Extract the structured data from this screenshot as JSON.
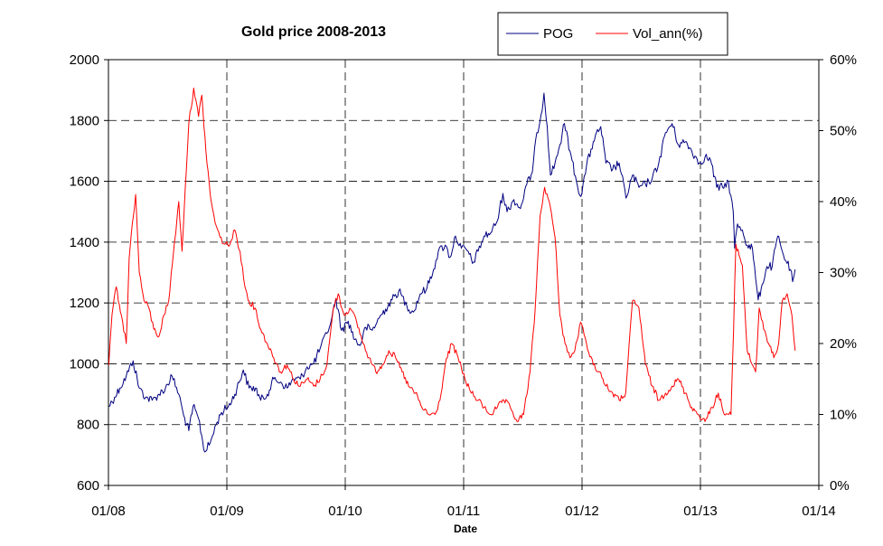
{
  "chart_data": {
    "type": "line",
    "title": "Gold price 2008-2013",
    "xlabel": "Date",
    "ylabel_left": "",
    "ylabel_right": "",
    "x_ticks": [
      "01/08",
      "01/09",
      "01/10",
      "01/11",
      "01/12",
      "01/13",
      "01/14"
    ],
    "x_range": [
      "2008-01-01",
      "2014-01-01"
    ],
    "ylim_left": [
      600,
      2000
    ],
    "y_ticks_left": [
      "600",
      "800",
      "1000",
      "1200",
      "1400",
      "1600",
      "1800",
      "2000"
    ],
    "ylim_right": [
      0,
      60
    ],
    "y_ticks_right": [
      "0%",
      "10%",
      "20%",
      "30%",
      "40%",
      "50%",
      "60%"
    ],
    "grid": true,
    "legend_position": "top-center",
    "series": [
      {
        "name": "POG",
        "axis": "left",
        "color": "#000080",
        "points": [
          [
            "2008-01-02",
            860
          ],
          [
            "2008-01-20",
            890
          ],
          [
            "2008-02-05",
            920
          ],
          [
            "2008-02-25",
            960
          ],
          [
            "2008-03-17",
            1010
          ],
          [
            "2008-04-05",
            920
          ],
          [
            "2008-04-25",
            890
          ],
          [
            "2008-05-15",
            880
          ],
          [
            "2008-06-05",
            900
          ],
          [
            "2008-06-25",
            920
          ],
          [
            "2008-07-15",
            960
          ],
          [
            "2008-08-05",
            900
          ],
          [
            "2008-08-20",
            830
          ],
          [
            "2008-09-05",
            780
          ],
          [
            "2008-09-18",
            860
          ],
          [
            "2008-10-05",
            820
          ],
          [
            "2008-10-24",
            710
          ],
          [
            "2008-11-10",
            740
          ],
          [
            "2008-11-28",
            800
          ],
          [
            "2008-12-15",
            840
          ],
          [
            "2009-01-05",
            860
          ],
          [
            "2009-01-25",
            900
          ],
          [
            "2009-02-20",
            980
          ],
          [
            "2009-03-10",
            920
          ],
          [
            "2009-03-30",
            920
          ],
          [
            "2009-04-15",
            880
          ],
          [
            "2009-05-05",
            900
          ],
          [
            "2009-05-25",
            950
          ],
          [
            "2009-06-15",
            940
          ],
          [
            "2009-07-05",
            920
          ],
          [
            "2009-07-25",
            950
          ],
          [
            "2009-08-15",
            950
          ],
          [
            "2009-09-05",
            990
          ],
          [
            "2009-09-25",
            1000
          ],
          [
            "2009-10-15",
            1050
          ],
          [
            "2009-11-05",
            1100
          ],
          [
            "2009-11-20",
            1150
          ],
          [
            "2009-12-03",
            1215
          ],
          [
            "2009-12-20",
            1110
          ],
          [
            "2010-01-10",
            1140
          ],
          [
            "2010-01-30",
            1080
          ],
          [
            "2010-02-15",
            1060
          ],
          [
            "2010-03-05",
            1120
          ],
          [
            "2010-03-25",
            1110
          ],
          [
            "2010-04-15",
            1150
          ],
          [
            "2010-05-05",
            1180
          ],
          [
            "2010-05-25",
            1210
          ],
          [
            "2010-06-15",
            1240
          ],
          [
            "2010-07-10",
            1190
          ],
          [
            "2010-07-30",
            1170
          ],
          [
            "2010-08-20",
            1230
          ],
          [
            "2010-09-10",
            1250
          ],
          [
            "2010-09-30",
            1310
          ],
          [
            "2010-10-15",
            1370
          ],
          [
            "2010-11-05",
            1390
          ],
          [
            "2010-11-20",
            1350
          ],
          [
            "2010-12-07",
            1420
          ],
          [
            "2010-12-25",
            1380
          ],
          [
            "2011-01-15",
            1370
          ],
          [
            "2011-01-28",
            1330
          ],
          [
            "2011-02-15",
            1370
          ],
          [
            "2011-03-05",
            1420
          ],
          [
            "2011-03-25",
            1430
          ],
          [
            "2011-04-15",
            1470
          ],
          [
            "2011-05-02",
            1560
          ],
          [
            "2011-05-15",
            1500
          ],
          [
            "2011-06-05",
            1540
          ],
          [
            "2011-06-25",
            1510
          ],
          [
            "2011-07-15",
            1590
          ],
          [
            "2011-08-01",
            1630
          ],
          [
            "2011-08-15",
            1760
          ],
          [
            "2011-08-25",
            1800
          ],
          [
            "2011-09-06",
            1890
          ],
          [
            "2011-09-16",
            1780
          ],
          [
            "2011-09-26",
            1620
          ],
          [
            "2011-10-10",
            1660
          ],
          [
            "2011-10-25",
            1720
          ],
          [
            "2011-11-08",
            1790
          ],
          [
            "2011-11-25",
            1700
          ],
          [
            "2011-12-15",
            1600
          ],
          [
            "2011-12-29",
            1550
          ],
          [
            "2012-01-15",
            1650
          ],
          [
            "2012-02-05",
            1730
          ],
          [
            "2012-02-28",
            1780
          ],
          [
            "2012-03-15",
            1660
          ],
          [
            "2012-04-05",
            1640
          ],
          [
            "2012-04-25",
            1660
          ],
          [
            "2012-05-16",
            1545
          ],
          [
            "2012-06-05",
            1620
          ],
          [
            "2012-06-25",
            1580
          ],
          [
            "2012-07-15",
            1590
          ],
          [
            "2012-08-05",
            1610
          ],
          [
            "2012-08-25",
            1660
          ],
          [
            "2012-09-15",
            1760
          ],
          [
            "2012-10-05",
            1790
          ],
          [
            "2012-10-25",
            1720
          ],
          [
            "2012-11-15",
            1730
          ],
          [
            "2012-12-05",
            1700
          ],
          [
            "2012-12-28",
            1660
          ],
          [
            "2013-01-15",
            1680
          ],
          [
            "2013-02-01",
            1670
          ],
          [
            "2013-02-20",
            1580
          ],
          [
            "2013-03-10",
            1580
          ],
          [
            "2013-03-28",
            1600
          ],
          [
            "2013-04-12",
            1500
          ],
          [
            "2013-04-16",
            1380
          ],
          [
            "2013-04-25",
            1460
          ],
          [
            "2013-05-10",
            1440
          ],
          [
            "2013-05-25",
            1390
          ],
          [
            "2013-06-10",
            1380
          ],
          [
            "2013-06-20",
            1280
          ],
          [
            "2013-06-28",
            1210
          ],
          [
            "2013-07-10",
            1260
          ],
          [
            "2013-07-25",
            1320
          ],
          [
            "2013-08-10",
            1320
          ],
          [
            "2013-08-27",
            1420
          ],
          [
            "2013-09-10",
            1370
          ],
          [
            "2013-09-25",
            1330
          ],
          [
            "2013-10-05",
            1310
          ],
          [
            "2013-10-12",
            1270
          ],
          [
            "2013-10-20",
            1310
          ]
        ]
      },
      {
        "name": "Vol_ann(%)",
        "axis": "right",
        "color": "#ff0000",
        "points": [
          [
            "2008-01-02",
            17
          ],
          [
            "2008-01-12",
            24
          ],
          [
            "2008-01-25",
            28
          ],
          [
            "2008-02-10",
            24
          ],
          [
            "2008-02-25",
            20
          ],
          [
            "2008-03-05",
            32
          ],
          [
            "2008-03-15",
            37
          ],
          [
            "2008-03-25",
            41
          ],
          [
            "2008-04-05",
            30
          ],
          [
            "2008-04-20",
            26
          ],
          [
            "2008-05-05",
            25
          ],
          [
            "2008-05-20",
            22
          ],
          [
            "2008-06-05",
            21
          ],
          [
            "2008-06-20",
            24
          ],
          [
            "2008-07-05",
            26
          ],
          [
            "2008-07-20",
            33
          ],
          [
            "2008-08-05",
            40
          ],
          [
            "2008-08-15",
            33
          ],
          [
            "2008-08-25",
            42
          ],
          [
            "2008-09-05",
            51
          ],
          [
            "2008-09-20",
            56
          ],
          [
            "2008-10-05",
            52
          ],
          [
            "2008-10-15",
            55
          ],
          [
            "2008-10-28",
            47
          ],
          [
            "2008-11-10",
            41
          ],
          [
            "2008-11-25",
            37
          ],
          [
            "2008-12-10",
            35
          ],
          [
            "2008-12-25",
            34
          ],
          [
            "2009-01-10",
            34
          ],
          [
            "2009-01-25",
            36
          ],
          [
            "2009-02-10",
            33
          ],
          [
            "2009-02-25",
            28
          ],
          [
            "2009-03-10",
            26
          ],
          [
            "2009-03-28",
            25
          ],
          [
            "2009-04-15",
            22
          ],
          [
            "2009-05-05",
            20
          ],
          [
            "2009-05-25",
            18
          ],
          [
            "2009-06-15",
            16
          ],
          [
            "2009-07-05",
            17
          ],
          [
            "2009-07-25",
            15
          ],
          [
            "2009-08-15",
            14
          ],
          [
            "2009-09-05",
            15
          ],
          [
            "2009-09-25",
            14
          ],
          [
            "2009-10-15",
            15
          ],
          [
            "2009-11-05",
            17
          ],
          [
            "2009-11-25",
            25
          ],
          [
            "2009-12-10",
            27
          ],
          [
            "2009-12-28",
            24
          ],
          [
            "2010-01-15",
            25
          ],
          [
            "2010-02-05",
            23
          ],
          [
            "2010-02-25",
            20
          ],
          [
            "2010-03-15",
            18
          ],
          [
            "2010-04-05",
            16
          ],
          [
            "2010-04-25",
            17
          ],
          [
            "2010-05-15",
            19
          ],
          [
            "2010-06-05",
            18
          ],
          [
            "2010-06-25",
            16
          ],
          [
            "2010-07-15",
            14
          ],
          [
            "2010-08-05",
            13
          ],
          [
            "2010-08-25",
            11
          ],
          [
            "2010-09-15",
            10
          ],
          [
            "2010-10-05",
            10
          ],
          [
            "2010-10-20",
            12
          ],
          [
            "2010-11-05",
            17
          ],
          [
            "2010-11-25",
            20
          ],
          [
            "2010-12-15",
            18
          ],
          [
            "2011-01-05",
            15
          ],
          [
            "2011-01-25",
            13
          ],
          [
            "2011-02-15",
            12
          ],
          [
            "2011-03-05",
            11
          ],
          [
            "2011-03-25",
            10
          ],
          [
            "2011-04-15",
            11
          ],
          [
            "2011-05-05",
            12
          ],
          [
            "2011-05-25",
            11
          ],
          [
            "2011-06-15",
            9
          ],
          [
            "2011-07-05",
            10
          ],
          [
            "2011-07-25",
            16
          ],
          [
            "2011-08-10",
            25
          ],
          [
            "2011-08-25",
            38
          ],
          [
            "2011-09-08",
            42
          ],
          [
            "2011-09-22",
            40
          ],
          [
            "2011-10-10",
            35
          ],
          [
            "2011-10-25",
            24
          ],
          [
            "2011-11-10",
            20
          ],
          [
            "2011-11-25",
            18
          ],
          [
            "2011-12-10",
            19
          ],
          [
            "2011-12-28",
            23
          ],
          [
            "2012-01-15",
            20
          ],
          [
            "2012-02-05",
            17
          ],
          [
            "2012-02-25",
            16
          ],
          [
            "2012-03-15",
            14
          ],
          [
            "2012-04-05",
            13
          ],
          [
            "2012-04-25",
            12
          ],
          [
            "2012-05-15",
            13
          ],
          [
            "2012-06-05",
            26
          ],
          [
            "2012-06-25",
            25
          ],
          [
            "2012-07-15",
            17
          ],
          [
            "2012-08-05",
            14
          ],
          [
            "2012-08-25",
            12
          ],
          [
            "2012-09-15",
            13
          ],
          [
            "2012-10-05",
            14
          ],
          [
            "2012-10-25",
            15
          ],
          [
            "2012-11-15",
            13
          ],
          [
            "2012-12-05",
            11
          ],
          [
            "2012-12-25",
            10
          ],
          [
            "2013-01-15",
            9
          ],
          [
            "2013-02-05",
            11
          ],
          [
            "2013-02-25",
            13
          ],
          [
            "2013-03-15",
            10
          ],
          [
            "2013-04-05",
            10
          ],
          [
            "2013-04-13",
            22
          ],
          [
            "2013-04-20",
            34
          ],
          [
            "2013-05-10",
            31
          ],
          [
            "2013-05-25",
            19
          ],
          [
            "2013-06-10",
            17
          ],
          [
            "2013-06-20",
            16
          ],
          [
            "2013-07-01",
            25
          ],
          [
            "2013-07-15",
            22
          ],
          [
            "2013-07-30",
            20
          ],
          [
            "2013-08-15",
            18
          ],
          [
            "2013-08-30",
            20
          ],
          [
            "2013-09-10",
            26
          ],
          [
            "2013-09-25",
            27
          ],
          [
            "2013-10-10",
            24
          ],
          [
            "2013-10-20",
            19
          ]
        ]
      }
    ]
  }
}
